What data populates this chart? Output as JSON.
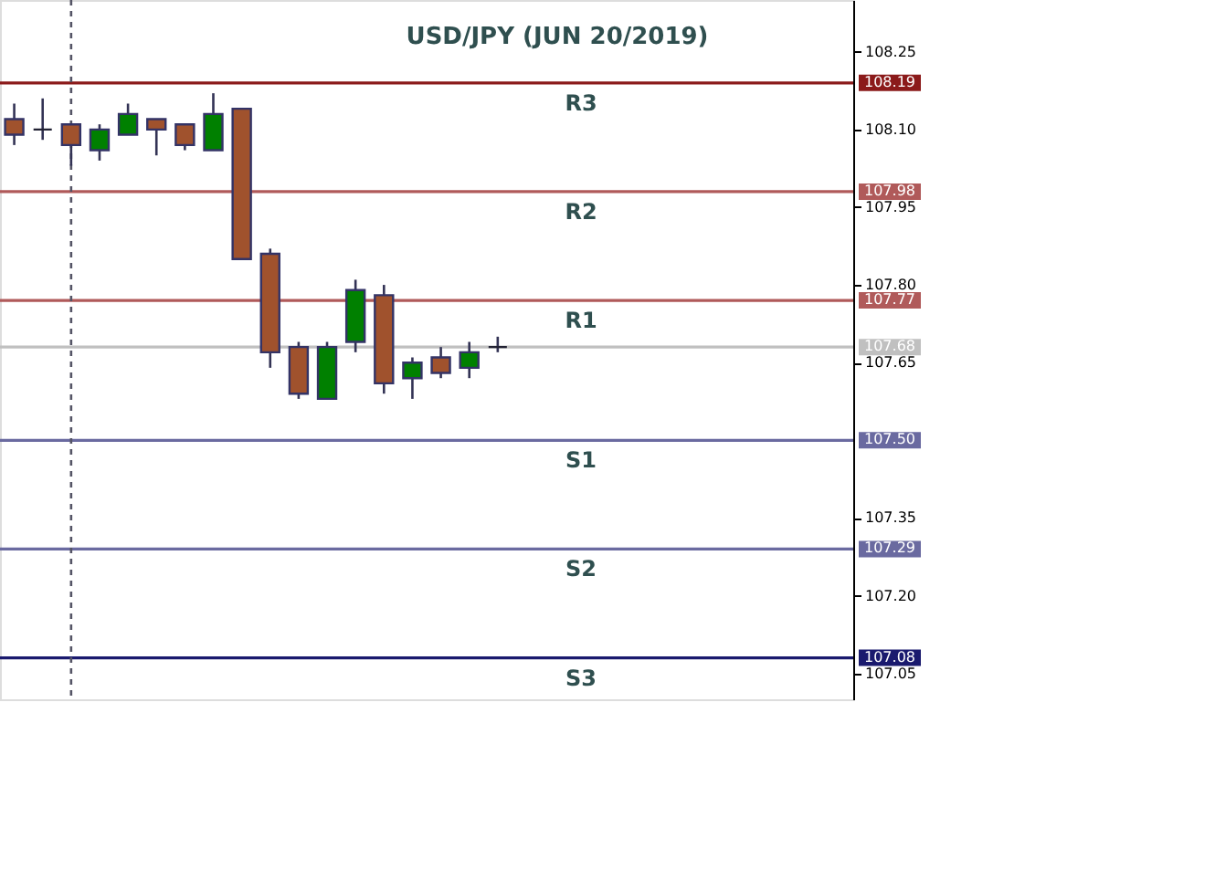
{
  "chart_data": {
    "type": "candlestick",
    "title": "USD/JPY (JUN 20/2019)",
    "categories": [
      null,
      null,
      null,
      null,
      null,
      null,
      null,
      null,
      null,
      null,
      null,
      null,
      null,
      null,
      null,
      null,
      null,
      null,
      null,
      null,
      null,
      null,
      null,
      null,
      null,
      null,
      null,
      null,
      null,
      null
    ],
    "ohlc": [
      [
        108.12,
        108.15,
        108.07,
        108.09
      ],
      [
        108.1,
        108.16,
        108.08,
        108.1
      ],
      [
        108.11,
        108.11,
        108.03,
        108.07
      ],
      [
        108.06,
        108.11,
        108.04,
        108.1
      ],
      [
        108.09,
        108.15,
        108.09,
        108.13
      ],
      [
        108.12,
        108.12,
        108.05,
        108.1
      ],
      [
        108.11,
        108.11,
        108.06,
        108.07
      ],
      [
        108.06,
        108.17,
        108.06,
        108.13
      ],
      [
        108.14,
        108.14,
        107.85,
        107.85
      ],
      [
        107.86,
        107.87,
        107.64,
        107.67
      ],
      [
        107.68,
        107.69,
        107.58,
        107.59
      ],
      [
        107.58,
        107.69,
        107.58,
        107.68
      ],
      [
        107.69,
        107.81,
        107.67,
        107.79
      ],
      [
        107.78,
        107.8,
        107.59,
        107.61
      ],
      [
        107.62,
        107.66,
        107.58,
        107.65
      ],
      [
        107.66,
        107.68,
        107.62,
        107.63
      ],
      [
        107.64,
        107.69,
        107.62,
        107.67
      ],
      [
        107.68,
        107.7,
        107.67,
        107.68
      ],
      null,
      null,
      null,
      null,
      null,
      null,
      null,
      null,
      null,
      null,
      null,
      null
    ],
    "colors": [
      "#a0522d",
      "#222233",
      "#a0522d",
      "#008000",
      "#008000",
      "#a0522d",
      "#a0522d",
      "#008000",
      "#a0522d",
      "#a0522d",
      "#a0522d",
      "#008000",
      "#008000",
      "#a0522d",
      "#008000",
      "#a0522d",
      "#008000",
      "#222233",
      null,
      null,
      null,
      null,
      null,
      null,
      null,
      null,
      null,
      null,
      null,
      null
    ],
    "ylim": [
      107.0,
      108.35
    ],
    "yticks": [
      {
        "value": 108.25,
        "label": "108.25"
      },
      {
        "value": 108.1,
        "label": "108.10"
      },
      {
        "value": 107.95,
        "label": "107.95"
      },
      {
        "value": 107.8,
        "label": "107.80"
      },
      {
        "value": 107.65,
        "label": "107.65"
      },
      {
        "value": 107.35,
        "label": "107.35"
      },
      {
        "value": 107.2,
        "label": "107.20"
      },
      {
        "value": 107.05,
        "label": "107.05"
      }
    ],
    "ref_lines": [
      {
        "axis": "y",
        "value": 108.19,
        "label": "R3",
        "color": "#8b1a1a"
      },
      {
        "axis": "y",
        "value": 107.98,
        "label": "R2",
        "color": "#b05a5a"
      },
      {
        "axis": "y",
        "value": 107.77,
        "label": "R1",
        "color": "#b05a5a"
      },
      {
        "axis": "y",
        "value": 107.68,
        "label": null,
        "color": "#c0c0c0"
      },
      {
        "axis": "y",
        "value": 107.5,
        "label": "S1",
        "color": "#6a6aa0"
      },
      {
        "axis": "y",
        "value": 107.29,
        "label": "S2",
        "color": "#6a6aa0"
      },
      {
        "axis": "y",
        "value": 107.08,
        "label": "S3",
        "color": "#1a1a6e"
      }
    ],
    "annotations": [
      "108.19",
      "107.98",
      "107.77",
      "107.68",
      "107.50",
      "107.29",
      "107.08"
    ],
    "grid": false
  }
}
